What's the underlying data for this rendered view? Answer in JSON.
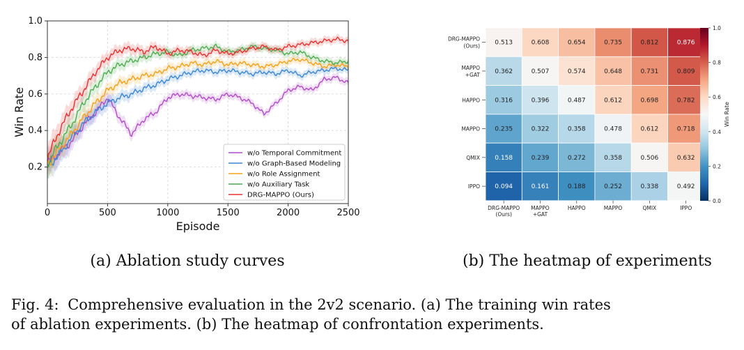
{
  "figure": {
    "caption_label": "Fig. 4:",
    "caption_line1": "Comprehensive evaluation in the 2v2 scenario. (a) The training win rates",
    "caption_line2": "of ablation experiments. (b) The heatmap of confrontation experiments."
  },
  "chart_data": [
    {
      "type": "line",
      "subcaption": "(a) Ablation study curves",
      "xlabel": "Episode",
      "ylabel": "Win Rate",
      "xlim": [
        0,
        2500
      ],
      "ylim": [
        0,
        1.0
      ],
      "xticks": [
        "0",
        "500",
        "1000",
        "1500",
        "2000",
        "2500"
      ],
      "yticks": [
        "0.2",
        "0.4",
        "0.6",
        "0.8",
        "1.0"
      ],
      "grid": true,
      "legend_position": "lower-right",
      "x": [
        0,
        100,
        200,
        300,
        400,
        500,
        600,
        700,
        800,
        900,
        1000,
        1100,
        1200,
        1300,
        1400,
        1500,
        1600,
        1700,
        1800,
        1900,
        2000,
        2100,
        2200,
        2300,
        2400,
        2500
      ],
      "series": [
        {
          "name": "w/o Temporal Commitment",
          "color": "#b04cc7",
          "values": [
            0.22,
            0.28,
            0.34,
            0.43,
            0.5,
            0.58,
            0.47,
            0.38,
            0.46,
            0.5,
            0.58,
            0.6,
            0.59,
            0.58,
            0.57,
            0.6,
            0.58,
            0.55,
            0.49,
            0.55,
            0.62,
            0.64,
            0.62,
            0.68,
            0.69,
            0.66
          ]
        },
        {
          "name": "w/o Graph-Based Modeling",
          "color": "#3a86d4",
          "values": [
            0.2,
            0.27,
            0.36,
            0.44,
            0.5,
            0.55,
            0.58,
            0.6,
            0.63,
            0.65,
            0.68,
            0.7,
            0.72,
            0.73,
            0.72,
            0.73,
            0.72,
            0.71,
            0.72,
            0.71,
            0.73,
            0.7,
            0.72,
            0.73,
            0.74,
            0.73
          ]
        },
        {
          "name": "w/o Role Assignment",
          "color": "#f5a019",
          "values": [
            0.21,
            0.3,
            0.38,
            0.47,
            0.55,
            0.62,
            0.66,
            0.68,
            0.7,
            0.71,
            0.74,
            0.75,
            0.77,
            0.76,
            0.78,
            0.76,
            0.77,
            0.76,
            0.75,
            0.76,
            0.78,
            0.79,
            0.77,
            0.75,
            0.76,
            0.75
          ]
        },
        {
          "name": "w/o Auxiliary Task",
          "color": "#4dac50",
          "values": [
            0.22,
            0.33,
            0.43,
            0.55,
            0.64,
            0.72,
            0.76,
            0.78,
            0.8,
            0.82,
            0.83,
            0.81,
            0.84,
            0.85,
            0.86,
            0.83,
            0.84,
            0.86,
            0.85,
            0.84,
            0.82,
            0.83,
            0.8,
            0.78,
            0.77,
            0.78
          ]
        },
        {
          "name": "DRG-MAPPO (Ours)",
          "color": "#e83030",
          "values": [
            0.25,
            0.4,
            0.52,
            0.62,
            0.72,
            0.8,
            0.84,
            0.85,
            0.83,
            0.86,
            0.82,
            0.84,
            0.83,
            0.81,
            0.84,
            0.82,
            0.83,
            0.85,
            0.86,
            0.84,
            0.86,
            0.87,
            0.88,
            0.89,
            0.9,
            0.89
          ]
        }
      ]
    },
    {
      "type": "heatmap",
      "subcaption": "(b) The heatmap of experiments",
      "rows": [
        [
          "DRG-MAPPO",
          "(Ours)"
        ],
        [
          "MAPPO",
          "+GAT"
        ],
        [
          "HAPPO"
        ],
        [
          "MAPPO"
        ],
        [
          "QMIX"
        ],
        [
          "IPPO"
        ]
      ],
      "cols": [
        [
          "DRG-MAPPO",
          "(Ours)"
        ],
        [
          "MAPPO",
          "+GAT"
        ],
        [
          "HAPPO"
        ],
        [
          "MAPPO"
        ],
        [
          "QMIX"
        ],
        [
          "IPPO"
        ]
      ],
      "values": [
        [
          0.513,
          0.608,
          0.654,
          0.735,
          0.812,
          0.876
        ],
        [
          0.362,
          0.507,
          0.574,
          0.648,
          0.731,
          0.809
        ],
        [
          0.316,
          0.396,
          0.487,
          0.612,
          0.698,
          0.782
        ],
        [
          0.235,
          0.322,
          0.358,
          0.478,
          0.612,
          0.718
        ],
        [
          0.158,
          0.239,
          0.272,
          0.358,
          0.506,
          0.632
        ],
        [
          0.094,
          0.161,
          0.188,
          0.252,
          0.338,
          0.492
        ]
      ],
      "colorbar_label": "Win Rate",
      "colorbar_range": [
        0.0,
        1.0
      ],
      "colorbar_ticks": [
        "0.0",
        "0.2",
        "0.4",
        "0.6",
        "0.8",
        "1.0"
      ],
      "colormap_stops": [
        "#053061",
        "#2166ac",
        "#4393c3",
        "#92c5de",
        "#d1e5f0",
        "#f7f7f7",
        "#fddbc7",
        "#f4a582",
        "#d6604d",
        "#b2182b",
        "#67001f"
      ]
    }
  ]
}
